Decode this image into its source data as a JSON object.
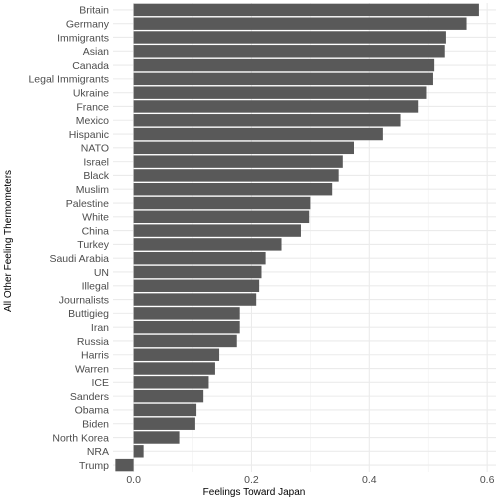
{
  "chart_data": {
    "type": "bar",
    "orientation": "horizontal",
    "xlabel": "Feelings Toward Japan",
    "ylabel": "All Other Feeling Thermometers",
    "xlim": [
      -0.035,
      0.615
    ],
    "xticks": [
      0.0,
      0.2,
      0.4,
      0.6
    ],
    "xtick_labels": [
      "0.0",
      "0.2",
      "0.4",
      "0.6"
    ],
    "grid": true,
    "bar_color": "#595959",
    "categories": [
      "Britain",
      "Germany",
      "Immigrants",
      "Asian",
      "Canada",
      "Legal Immigrants",
      "Ukraine",
      "France",
      "Mexico",
      "Hispanic",
      "NATO",
      "Israel",
      "Black",
      "Muslim",
      "Palestine",
      "White",
      "China",
      "Turkey",
      "Saudi Arabia",
      "UN",
      "Illegal",
      "Journalists",
      "Buttigieg",
      "Iran",
      "Russia",
      "Harris",
      "Warren",
      "ICE",
      "Sanders",
      "Obama",
      "Biden",
      "North Korea",
      "NRA",
      "Trump"
    ],
    "values": [
      0.586,
      0.565,
      0.53,
      0.528,
      0.51,
      0.508,
      0.497,
      0.483,
      0.453,
      0.423,
      0.374,
      0.355,
      0.348,
      0.337,
      0.3,
      0.298,
      0.284,
      0.251,
      0.224,
      0.217,
      0.213,
      0.208,
      0.18,
      0.18,
      0.175,
      0.145,
      0.138,
      0.127,
      0.118,
      0.106,
      0.104,
      0.078,
      0.017,
      -0.031
    ]
  }
}
